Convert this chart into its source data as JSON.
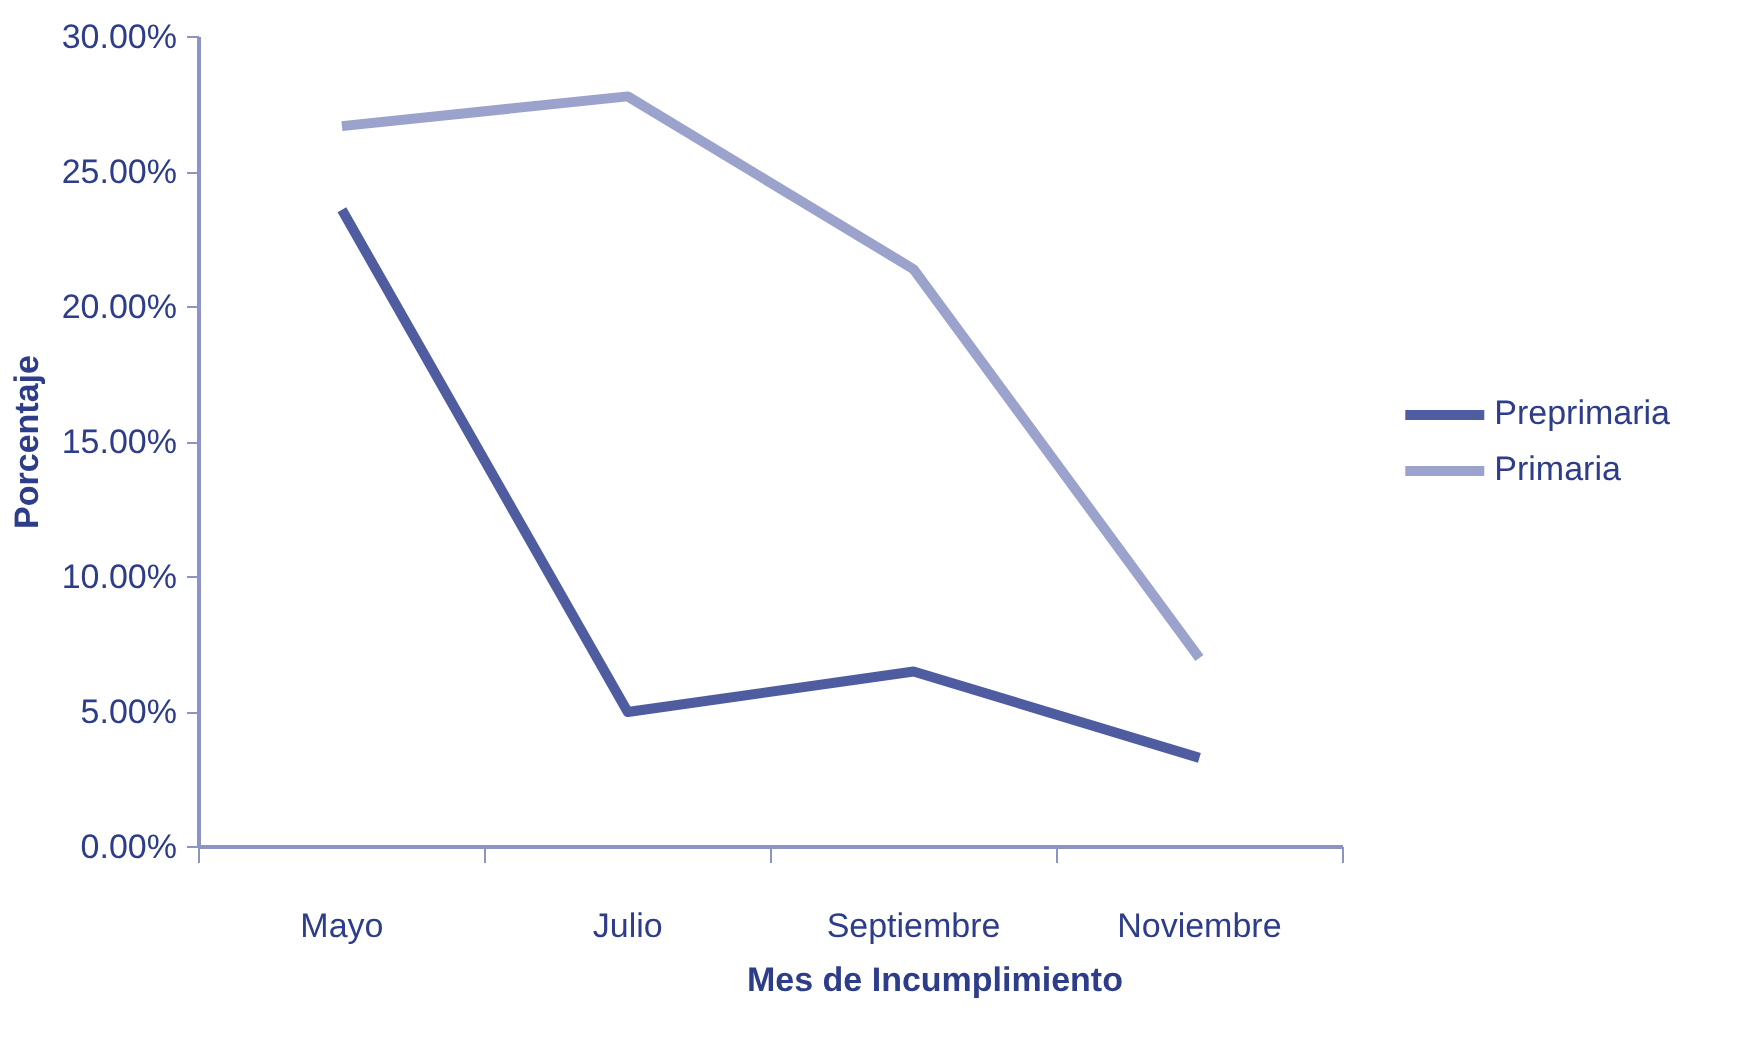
{
  "chart_data": {
    "type": "line",
    "xlabel": "Mes de Incumplimiento",
    "ylabel": "Porcentaje",
    "categories": [
      "Mayo",
      "Julio",
      "Septiembre",
      "Noviembre"
    ],
    "series": [
      {
        "name": "Preprimaria",
        "color": "#4f5ca0",
        "values": [
          23.6,
          5.0,
          6.5,
          3.3
        ]
      },
      {
        "name": "Primaria",
        "color": "#9ba3cc",
        "values": [
          26.7,
          27.8,
          21.4,
          7.0
        ]
      }
    ],
    "ylim": [
      0,
      30
    ],
    "yticks": [
      {
        "value": 0,
        "label": "0.00%"
      },
      {
        "value": 5,
        "label": "5.00%"
      },
      {
        "value": 10,
        "label": "10.00%"
      },
      {
        "value": 15,
        "label": "15.00%"
      },
      {
        "value": 20,
        "label": "20.00%"
      },
      {
        "value": 25,
        "label": "25.00%"
      },
      {
        "value": 30,
        "label": "30.00%"
      }
    ],
    "grid": false,
    "legend": "right",
    "marker": "none",
    "line_style": "solid"
  }
}
